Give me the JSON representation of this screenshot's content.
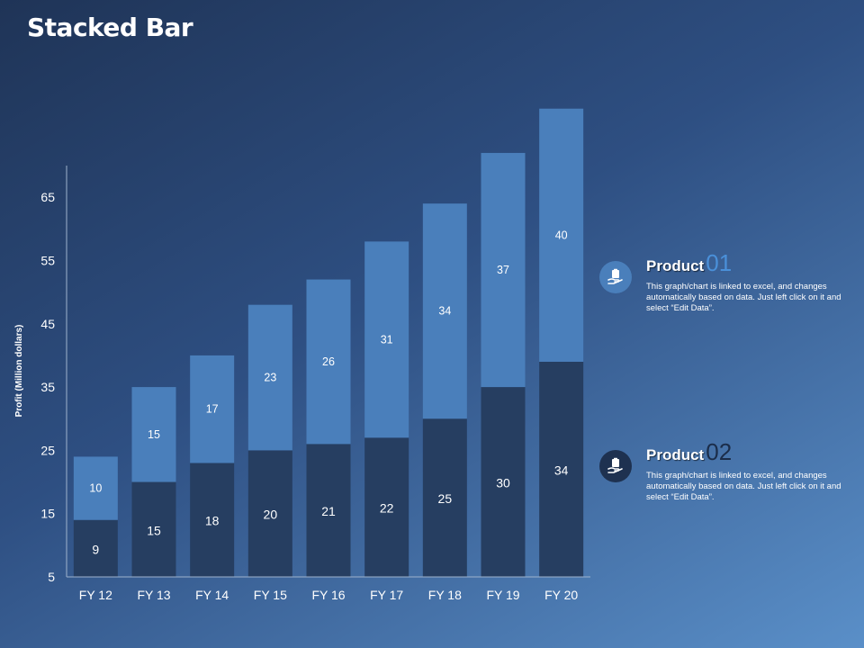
{
  "slide": {
    "title": "Stacked Bar"
  },
  "chart_data": {
    "type": "bar",
    "stacked": true,
    "categories": [
      "FY 12",
      "FY 13",
      "FY 14",
      "FY 15",
      "FY 16",
      "FY 17",
      "FY 18",
      "FY 19",
      "FY 20"
    ],
    "series": [
      {
        "name": "Product 02",
        "values": [
          9,
          15,
          18,
          20,
          21,
          22,
          25,
          30,
          34
        ],
        "color": "#263e61"
      },
      {
        "name": "Product 01",
        "values": [
          10,
          15,
          17,
          23,
          26,
          31,
          34,
          37,
          40
        ],
        "color": "#4a7fbb"
      }
    ],
    "ylabel": "Profit  (Million dollars)",
    "ylim": [
      5,
      70
    ],
    "yticks": [
      5,
      15,
      25,
      35,
      45,
      55,
      65
    ],
    "grid": false,
    "legend": "right"
  },
  "legend": [
    {
      "name": "Product",
      "number": "01",
      "number_color": "#4a90d9",
      "icon": "hand-with-clipboard-icon",
      "icon_bg": "#4a7fbb",
      "description": "This graph/chart is linked to excel, and changes automatically based on data. Just left click on it and select “Edit Data”."
    },
    {
      "name": "Product",
      "number": "02",
      "number_color": "#1b2d4a",
      "icon": "hand-with-clipboard-icon",
      "icon_bg": "#1e3150",
      "description": "This graph/chart is linked to excel, and changes automatically based on data. Just left click on it and select “Edit Data”."
    }
  ]
}
